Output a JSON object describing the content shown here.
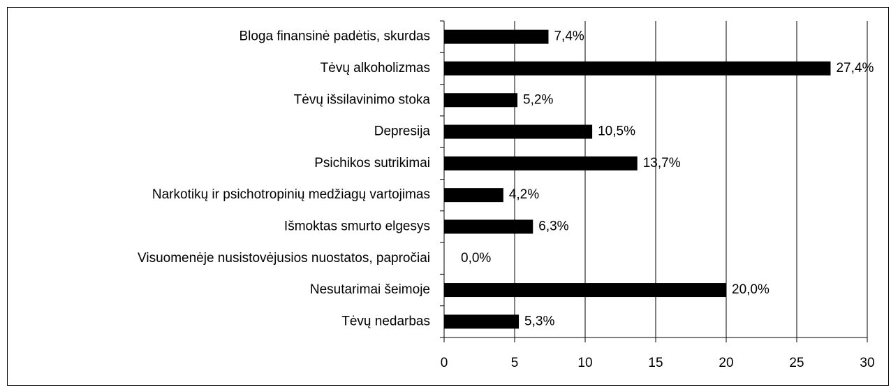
{
  "chart_data": {
    "type": "bar",
    "orientation": "horizontal",
    "categories": [
      "Bloga finansinė padėtis, skurdas",
      "Tėvų alkoholizmas",
      "Tėvų išsilavinimo stoka",
      "Depresija",
      "Psichikos sutrikimai",
      "Narkotikų ir psichotropinių medžiagų vartojimas",
      "Išmoktas smurto elgesys",
      "Visuomenėje nusistovėjusios nuostatos, papročiai",
      "Nesutarimai šeimoje",
      "Tėvų nedarbas"
    ],
    "values": [
      7.4,
      27.4,
      5.2,
      10.5,
      13.7,
      4.2,
      6.3,
      0.0,
      20.0,
      5.3
    ],
    "value_labels": [
      "7,4%",
      "27,4%",
      "5,2%",
      "10,5%",
      "13,7%",
      "4,2%",
      "6,3%",
      "0,0%",
      "20,0%",
      "5,3%"
    ],
    "color": "#000000",
    "xlim": [
      0,
      30
    ],
    "xticks": [
      0,
      5,
      10,
      15,
      20,
      25,
      30
    ],
    "grid": true
  }
}
